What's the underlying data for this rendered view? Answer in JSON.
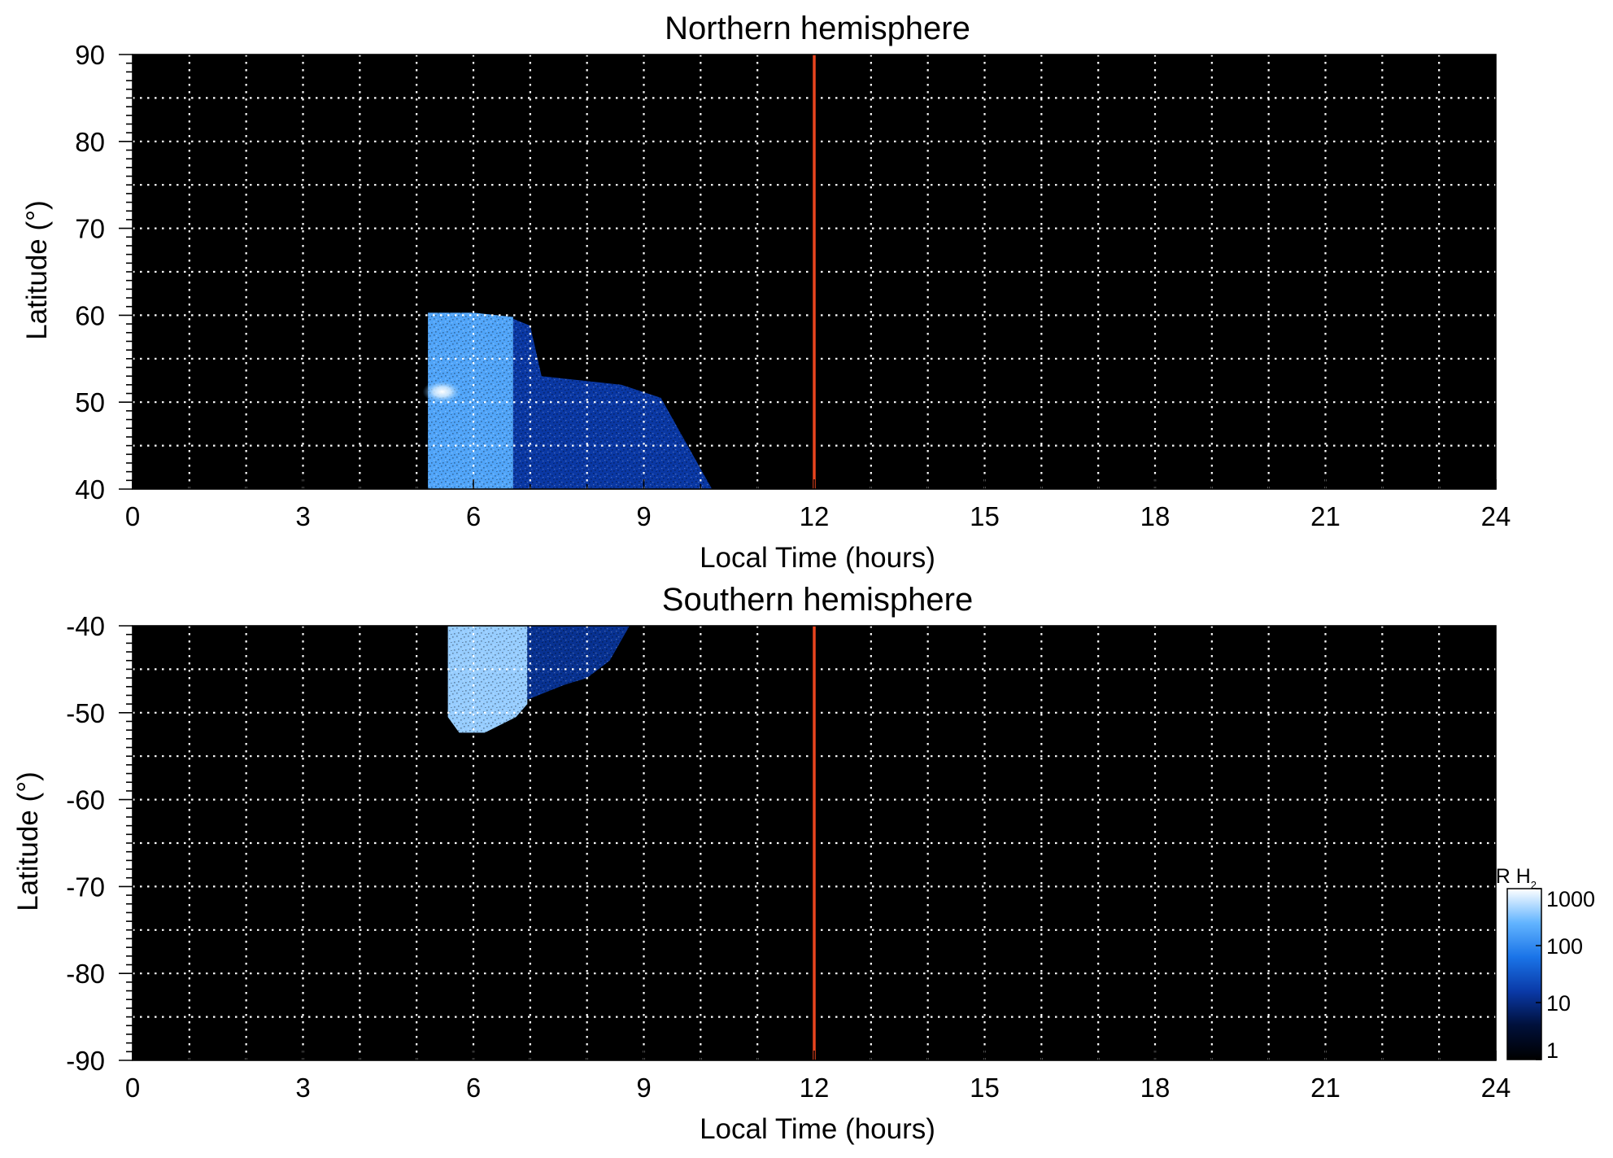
{
  "chart_data": [
    {
      "type": "heatmap",
      "title": "Northern hemisphere",
      "xlabel": "Local Time (hours)",
      "ylabel": "Latitude (°)",
      "xlim": [
        0,
        24
      ],
      "ylim": [
        40,
        90
      ],
      "x_ticks": [
        0,
        3,
        6,
        9,
        12,
        15,
        18,
        21,
        24
      ],
      "x_tick_labels": [
        "0",
        "3",
        "6",
        "9",
        "12",
        "15",
        "18",
        "21",
        "24"
      ],
      "y_ticks": [
        40,
        50,
        60,
        70,
        80,
        90
      ],
      "y_tick_labels": [
        "40",
        "50",
        "60",
        "70",
        "80",
        "90"
      ],
      "grid": true,
      "grid_x_step": 1,
      "grid_y_step": 5,
      "background_color": "#000000",
      "grid_color": "#ffffff",
      "marker_line": {
        "x": 12,
        "color": "#e8441e"
      },
      "emission_regions": [
        {
          "polygon": [
            [
              5.2,
              40
            ],
            [
              5.2,
              60.3
            ],
            [
              6.0,
              60.3
            ],
            [
              6.7,
              59.8
            ],
            [
              6.7,
              40
            ]
          ],
          "intensity_kR": 180
        },
        {
          "polygon": [
            [
              6.7,
              40
            ],
            [
              6.7,
              59.6
            ],
            [
              7.0,
              58.8
            ],
            [
              7.2,
              53.0
            ],
            [
              8.6,
              52.0
            ],
            [
              9.3,
              50.5
            ],
            [
              10.2,
              40
            ]
          ],
          "intensity_kR": 15
        }
      ],
      "hotspots": [
        {
          "x": 5.45,
          "y": 51.2,
          "intensity_kR": 1000
        }
      ]
    },
    {
      "type": "heatmap",
      "title": "Southern hemisphere",
      "xlabel": "Local Time (hours)",
      "ylabel": "Latitude (°)",
      "xlim": [
        0,
        24
      ],
      "ylim": [
        -90,
        -40
      ],
      "x_ticks": [
        0,
        3,
        6,
        9,
        12,
        15,
        18,
        21,
        24
      ],
      "x_tick_labels": [
        "0",
        "3",
        "6",
        "9",
        "12",
        "15",
        "18",
        "21",
        "24"
      ],
      "y_ticks": [
        -90,
        -80,
        -70,
        -60,
        -50,
        -40
      ],
      "y_tick_labels": [
        "-90",
        "-80",
        "-70",
        "-60",
        "-50",
        "-40"
      ],
      "grid": true,
      "grid_x_step": 1,
      "grid_y_step": 5,
      "background_color": "#000000",
      "grid_color": "#ffffff",
      "marker_line": {
        "x": 12,
        "color": "#e8441e"
      },
      "emission_regions": [
        {
          "polygon": [
            [
              5.55,
              -40
            ],
            [
              5.55,
              -50.5
            ],
            [
              5.75,
              -52.3
            ],
            [
              6.2,
              -52.3
            ],
            [
              6.75,
              -50.5
            ],
            [
              6.95,
              -49.0
            ],
            [
              6.95,
              -40
            ]
          ],
          "intensity_kR": 400
        },
        {
          "polygon": [
            [
              6.95,
              -40
            ],
            [
              6.95,
              -48.5
            ],
            [
              7.6,
              -46.8
            ],
            [
              8.0,
              -46.0
            ],
            [
              8.4,
              -44.0
            ],
            [
              8.75,
              -40
            ]
          ],
          "intensity_kR": 12
        }
      ],
      "hotspots": []
    }
  ],
  "colorbar": {
    "label_main": "kR H",
    "label_subscript": "2",
    "scale": "log",
    "range": [
      1,
      1000
    ],
    "ticks": [
      1,
      10,
      100,
      1000
    ],
    "tick_labels": [
      "1",
      "10",
      "100",
      "1000"
    ],
    "colors": [
      "#000000",
      "#00103a",
      "#0a3aa8",
      "#1a74e8",
      "#62b4ff",
      "#ffffff"
    ]
  }
}
